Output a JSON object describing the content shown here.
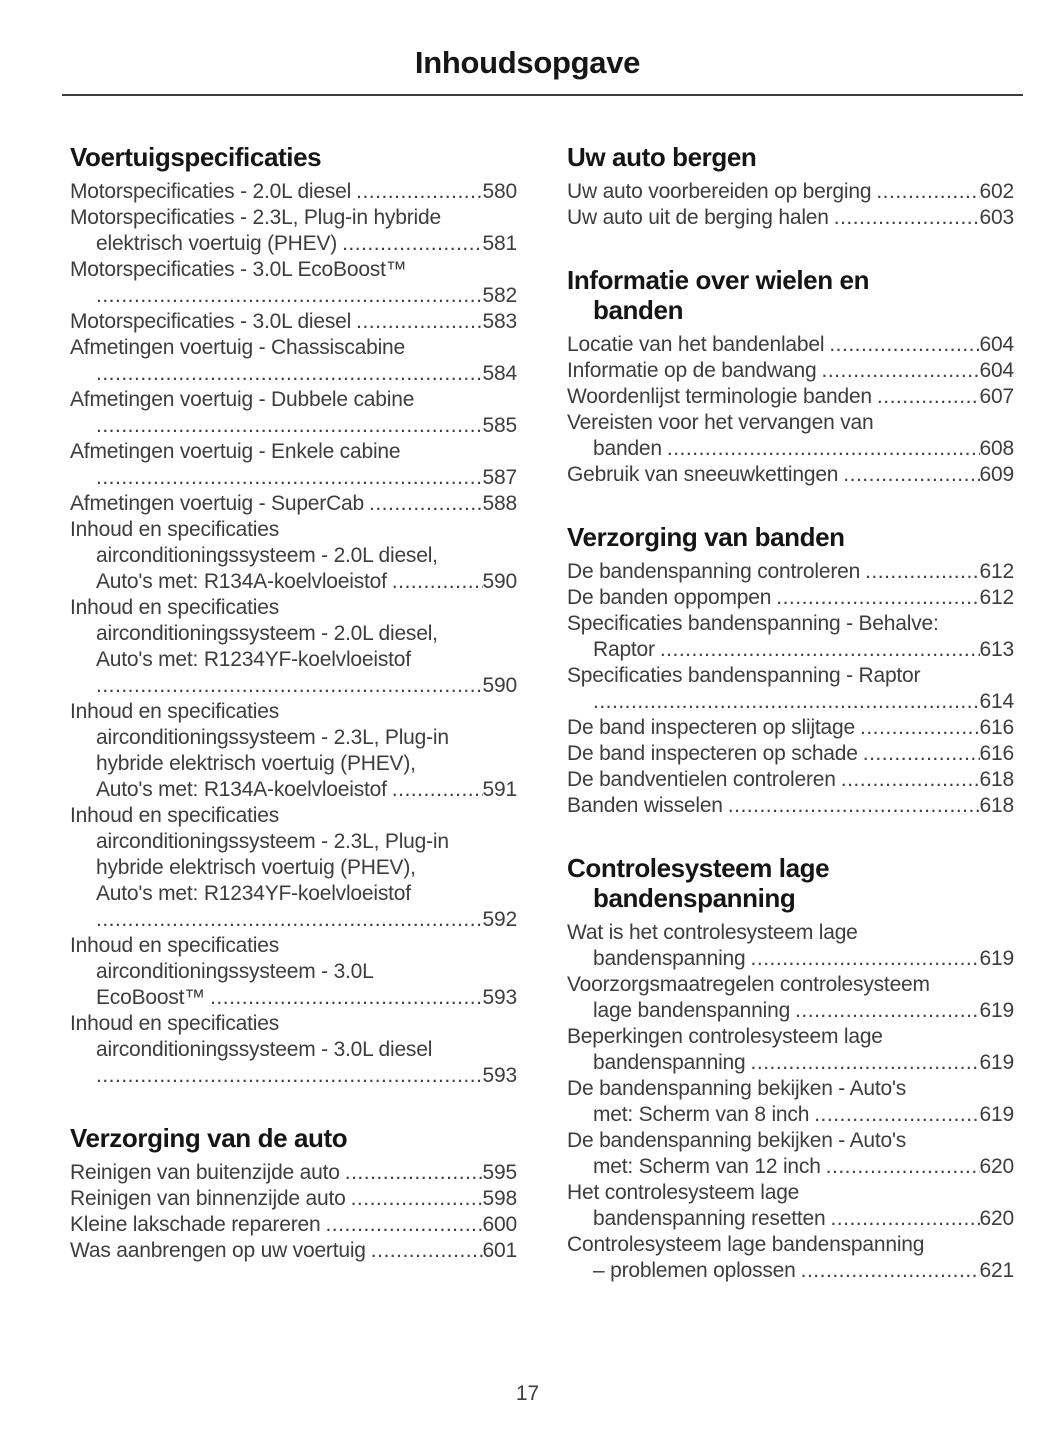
{
  "document": {
    "title": "Inhoudsopgave",
    "page_number": "17"
  },
  "toc": {
    "columns": [
      {
        "sections": [
          {
            "heading_lines": [
              "Voertuigspecificaties"
            ],
            "entries": [
              {
                "lines": [
                  "Motorspecificaties - 2.0L diesel"
                ],
                "page": "580"
              },
              {
                "lines": [
                  "Motorspecificaties - 2.3L, Plug-in hybride",
                  "elektrisch voertuig (PHEV)"
                ],
                "page": "581"
              },
              {
                "lines": [
                  "Motorspecificaties - 3.0L EcoBoost™",
                  ""
                ],
                "page": "582"
              },
              {
                "lines": [
                  "Motorspecificaties - 3.0L diesel"
                ],
                "page": "583"
              },
              {
                "lines": [
                  "Afmetingen voertuig - Chassiscabine",
                  ""
                ],
                "page": "584"
              },
              {
                "lines": [
                  "Afmetingen voertuig - Dubbele cabine",
                  ""
                ],
                "page": "585"
              },
              {
                "lines": [
                  "Afmetingen voertuig - Enkele cabine",
                  ""
                ],
                "page": "587"
              },
              {
                "lines": [
                  "Afmetingen voertuig - SuperCab"
                ],
                "page": "588"
              },
              {
                "lines": [
                  "Inhoud en specificaties",
                  "airconditioningssysteem - 2.0L diesel,",
                  "Auto's met: R134A-koelvloeistof"
                ],
                "page": "590"
              },
              {
                "lines": [
                  "Inhoud en specificaties",
                  "airconditioningssysteem - 2.0L diesel,",
                  "Auto's met: R1234YF-koelvloeistof",
                  ""
                ],
                "page": "590"
              },
              {
                "lines": [
                  "Inhoud en specificaties",
                  "airconditioningssysteem - 2.3L, Plug-in",
                  "hybride elektrisch voertuig (PHEV),",
                  "Auto's met: R134A-koelvloeistof"
                ],
                "page": "591"
              },
              {
                "lines": [
                  "Inhoud en specificaties",
                  "airconditioningssysteem - 2.3L, Plug-in",
                  "hybride elektrisch voertuig (PHEV),",
                  "Auto's met: R1234YF-koelvloeistof",
                  ""
                ],
                "page": "592"
              },
              {
                "lines": [
                  "Inhoud en specificaties",
                  "airconditioningssysteem - 3.0L",
                  "EcoBoost™"
                ],
                "page": "593"
              },
              {
                "lines": [
                  "Inhoud en specificaties",
                  "airconditioningssysteem - 3.0L diesel",
                  ""
                ],
                "page": "593"
              }
            ]
          },
          {
            "heading_lines": [
              "Verzorging van de auto"
            ],
            "entries": [
              {
                "lines": [
                  "Reinigen van buitenzijde auto"
                ],
                "page": "595"
              },
              {
                "lines": [
                  "Reinigen van binnenzijde auto"
                ],
                "page": "598"
              },
              {
                "lines": [
                  "Kleine lakschade repareren"
                ],
                "page": "600"
              },
              {
                "lines": [
                  "Was aanbrengen op uw voertuig"
                ],
                "page": "601"
              }
            ]
          }
        ]
      },
      {
        "sections": [
          {
            "heading_lines": [
              "Uw auto bergen"
            ],
            "entries": [
              {
                "lines": [
                  "Uw auto voorbereiden op berging"
                ],
                "page": "602"
              },
              {
                "lines": [
                  "Uw auto uit de berging halen"
                ],
                "page": "603"
              }
            ]
          },
          {
            "heading_lines": [
              "Informatie over wielen en",
              "banden"
            ],
            "entries": [
              {
                "lines": [
                  "Locatie van het bandenlabel"
                ],
                "page": "604"
              },
              {
                "lines": [
                  "Informatie op de bandwang"
                ],
                "page": "604"
              },
              {
                "lines": [
                  "Woordenlijst terminologie banden"
                ],
                "page": "607"
              },
              {
                "lines": [
                  "Vereisten voor het vervangen van",
                  "banden"
                ],
                "page": "608"
              },
              {
                "lines": [
                  "Gebruik van sneeuwkettingen"
                ],
                "page": "609"
              }
            ]
          },
          {
            "heading_lines": [
              "Verzorging van banden"
            ],
            "entries": [
              {
                "lines": [
                  "De bandenspanning controleren"
                ],
                "page": "612"
              },
              {
                "lines": [
                  "De banden oppompen"
                ],
                "page": "612"
              },
              {
                "lines": [
                  "Specificaties bandenspanning - Behalve:",
                  "Raptor"
                ],
                "page": "613"
              },
              {
                "lines": [
                  "Specificaties bandenspanning - Raptor",
                  ""
                ],
                "page": "614"
              },
              {
                "lines": [
                  "De band inspecteren op slijtage"
                ],
                "page": "616"
              },
              {
                "lines": [
                  "De band inspecteren op schade"
                ],
                "page": "616"
              },
              {
                "lines": [
                  "De bandventielen controleren"
                ],
                "page": "618"
              },
              {
                "lines": [
                  "Banden wisselen"
                ],
                "page": "618"
              }
            ]
          },
          {
            "heading_lines": [
              "Controlesysteem lage",
              "bandenspanning"
            ],
            "entries": [
              {
                "lines": [
                  "Wat is het controlesysteem lage",
                  "bandenspanning"
                ],
                "page": "619"
              },
              {
                "lines": [
                  "Voorzorgsmaatregelen controlesysteem",
                  "lage bandenspanning"
                ],
                "page": "619"
              },
              {
                "lines": [
                  "Beperkingen controlesysteem lage",
                  "bandenspanning"
                ],
                "page": "619"
              },
              {
                "lines": [
                  "De bandenspanning bekijken - Auto's",
                  "met: Scherm van 8 inch"
                ],
                "page": "619"
              },
              {
                "lines": [
                  "De bandenspanning bekijken - Auto's",
                  "met: Scherm van 12 inch"
                ],
                "page": "620"
              },
              {
                "lines": [
                  "Het controlesysteem lage",
                  "bandenspanning resetten"
                ],
                "page": "620"
              },
              {
                "lines": [
                  "Controlesysteem lage bandenspanning",
                  "– problemen oplossen"
                ],
                "page": "621"
              }
            ]
          }
        ]
      }
    ]
  }
}
